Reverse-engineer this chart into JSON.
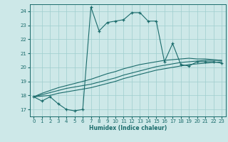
{
  "xlabel": "Humidex (Indice chaleur)",
  "bg_color": "#cde8e8",
  "grid_color": "#9ecece",
  "line_color": "#1a6b6b",
  "xlim": [
    -0.5,
    23.5
  ],
  "ylim": [
    16.5,
    24.5
  ],
  "yticks": [
    17,
    18,
    19,
    20,
    21,
    22,
    23,
    24
  ],
  "xticks": [
    0,
    1,
    2,
    3,
    4,
    5,
    6,
    7,
    8,
    9,
    10,
    11,
    12,
    13,
    14,
    15,
    16,
    17,
    18,
    19,
    20,
    21,
    22,
    23
  ],
  "line1_x": [
    0,
    1,
    2,
    3,
    4,
    5,
    6,
    7,
    8,
    9,
    10,
    11,
    12,
    13,
    14,
    15,
    16,
    17,
    18,
    19,
    20,
    21,
    22,
    23
  ],
  "line1_y": [
    17.9,
    17.6,
    17.9,
    17.4,
    17.0,
    16.9,
    17.0,
    24.3,
    22.6,
    23.2,
    23.3,
    23.4,
    23.9,
    23.9,
    23.3,
    23.3,
    20.4,
    21.7,
    20.2,
    20.1,
    20.4,
    20.4,
    20.4,
    20.3
  ],
  "line2_x": [
    0,
    1,
    2,
    3,
    4,
    5,
    6,
    7,
    8,
    9,
    10,
    11,
    12,
    13,
    14,
    15,
    16,
    17,
    18,
    19,
    20,
    21,
    22,
    23
  ],
  "line2_y": [
    17.9,
    17.95,
    18.0,
    18.15,
    18.25,
    18.35,
    18.45,
    18.55,
    18.7,
    18.85,
    19.0,
    19.2,
    19.35,
    19.5,
    19.65,
    19.8,
    19.9,
    20.0,
    20.1,
    20.2,
    20.25,
    20.3,
    20.35,
    20.4
  ],
  "line3_x": [
    0,
    1,
    2,
    3,
    4,
    5,
    6,
    7,
    8,
    9,
    10,
    11,
    12,
    13,
    14,
    15,
    16,
    17,
    18,
    19,
    20,
    21,
    22,
    23
  ],
  "line3_y": [
    17.9,
    18.05,
    18.2,
    18.35,
    18.5,
    18.6,
    18.7,
    18.8,
    18.95,
    19.1,
    19.25,
    19.45,
    19.6,
    19.75,
    19.9,
    20.05,
    20.15,
    20.25,
    20.35,
    20.4,
    20.45,
    20.5,
    20.5,
    20.5
  ],
  "line4_x": [
    0,
    1,
    2,
    3,
    4,
    5,
    6,
    7,
    8,
    9,
    10,
    11,
    12,
    13,
    14,
    15,
    16,
    17,
    18,
    19,
    20,
    21,
    22,
    23
  ],
  "line4_y": [
    17.9,
    18.15,
    18.35,
    18.55,
    18.7,
    18.85,
    19.0,
    19.15,
    19.35,
    19.55,
    19.7,
    19.9,
    20.05,
    20.2,
    20.3,
    20.4,
    20.5,
    20.55,
    20.6,
    20.65,
    20.6,
    20.6,
    20.55,
    20.5
  ]
}
